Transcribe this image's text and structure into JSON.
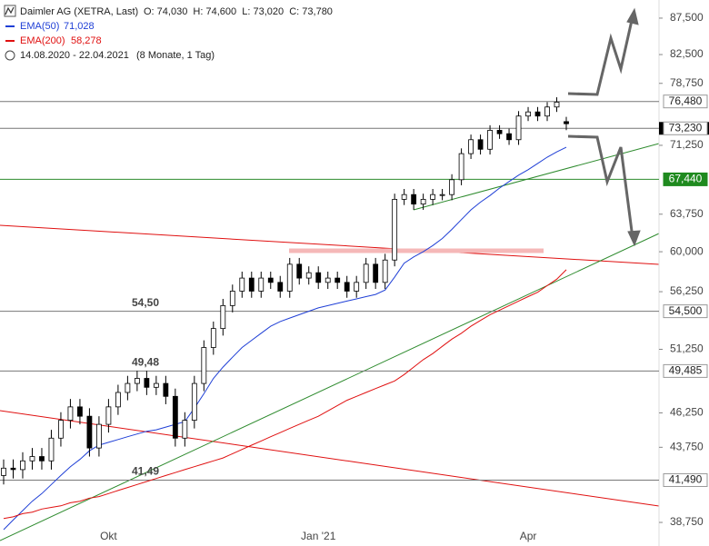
{
  "chart_data": {
    "type": "candlestick",
    "title": "Daimler AG (XETRA, Last)",
    "ohlc_label": "O: 74,030  H: 74,600  L: 73,020  C: 73,780",
    "period": "14.08.2020 - 22.04.2021",
    "period_note": "(8 Monate, 1 Tag)",
    "log_scale": true,
    "up_color": "#ffffff",
    "down_color": "#000000",
    "ylim": [
      38.3,
      90.1
    ],
    "yticks": [
      {
        "value": 38.75,
        "label": "38,750"
      },
      {
        "value": 43.75,
        "label": "43,750"
      },
      {
        "value": 46.25,
        "label": "46,250"
      },
      {
        "value": 51.25,
        "label": "51,250"
      },
      {
        "value": 56.25,
        "label": "56,250"
      },
      {
        "value": 60,
        "label": "60,000"
      },
      {
        "value": 63.75,
        "label": "63,750"
      },
      {
        "value": 71.25,
        "label": "71,250"
      },
      {
        "value": 78.75,
        "label": "78,750"
      },
      {
        "value": 82.5,
        "label": "82,500"
      },
      {
        "value": 87.5,
        "label": "87,500"
      }
    ],
    "categories": [
      null,
      null,
      null,
      null,
      null,
      null,
      null,
      null,
      null,
      null,
      null,
      "Okt",
      null,
      null,
      null,
      null,
      null,
      null,
      null,
      null,
      null,
      null,
      null,
      null,
      null,
      null,
      null,
      null,
      null,
      null,
      null,
      null,
      null,
      "Jan '21",
      null,
      null,
      null,
      null,
      null,
      null,
      null,
      null,
      null,
      null,
      null,
      null,
      null,
      null,
      null,
      null,
      null,
      null,
      null,
      null,
      null,
      "Apr",
      null,
      null,
      null,
      null
    ],
    "open": [
      41.8,
      42.3,
      42.2,
      42.8,
      43.1,
      42.8,
      44.4,
      45.7,
      46.7,
      46.0,
      43.7,
      45.4,
      46.7,
      47.8,
      48.5,
      48.9,
      48.2,
      48.5,
      47.5,
      44.4,
      45.7,
      48.5,
      51.4,
      53.0,
      55.0,
      56.3,
      57.5,
      56.3,
      57.5,
      57.1,
      56.3,
      58.8,
      57.5,
      58.0,
      57.1,
      57.5,
      57.1,
      56.3,
      57.1,
      58.8,
      57.1,
      59.2,
      65.3,
      65.8,
      64.8,
      65.3,
      65.8,
      65.8,
      67.4,
      70.3,
      71.9,
      70.8,
      73.0,
      72.6,
      71.9,
      74.7,
      75.2,
      74.7,
      75.8,
      74.03
    ],
    "high": [
      42.9,
      42.9,
      43.4,
      43.7,
      43.7,
      45.0,
      46.3,
      47.3,
      47.3,
      46.6,
      46.0,
      47.3,
      48.4,
      49.1,
      49.5,
      49.5,
      49.1,
      49.1,
      48.1,
      46.3,
      49.1,
      52.0,
      53.6,
      55.6,
      56.9,
      58.1,
      58.1,
      58.1,
      58.1,
      57.7,
      59.4,
      59.4,
      58.6,
      58.6,
      58.1,
      58.1,
      57.7,
      57.7,
      59.4,
      59.4,
      59.8,
      65.9,
      66.4,
      66.4,
      65.9,
      66.4,
      66.4,
      68.0,
      70.9,
      72.5,
      72.5,
      73.6,
      73.6,
      73.2,
      75.3,
      75.8,
      75.8,
      76.4,
      77.0,
      74.6
    ],
    "low": [
      41.2,
      41.6,
      41.6,
      42.2,
      42.2,
      42.2,
      43.8,
      45.1,
      45.4,
      43.1,
      43.1,
      44.8,
      46.1,
      47.2,
      47.9,
      47.6,
      47.6,
      46.9,
      43.8,
      43.8,
      45.1,
      47.9,
      50.8,
      52.4,
      54.4,
      55.7,
      55.7,
      55.7,
      56.5,
      55.7,
      55.7,
      56.9,
      56.9,
      56.5,
      56.5,
      56.5,
      55.7,
      55.7,
      56.5,
      56.5,
      56.5,
      58.6,
      64.7,
      64.2,
      64.2,
      64.7,
      65.2,
      65.2,
      66.8,
      69.7,
      70.2,
      70.2,
      72.0,
      71.3,
      71.3,
      74.1,
      74.1,
      74.1,
      75.2,
      73.02
    ],
    "close": [
      42.3,
      42.2,
      42.8,
      43.1,
      42.8,
      44.4,
      45.7,
      46.7,
      46.0,
      43.7,
      45.4,
      46.7,
      47.8,
      48.5,
      48.9,
      48.2,
      48.5,
      47.5,
      44.4,
      45.7,
      48.5,
      51.4,
      53.0,
      55.0,
      56.3,
      57.5,
      56.3,
      57.5,
      57.1,
      56.3,
      58.8,
      57.5,
      58.0,
      57.1,
      57.5,
      57.1,
      56.3,
      57.1,
      58.8,
      57.1,
      59.2,
      65.3,
      65.8,
      64.8,
      65.3,
      65.8,
      65.8,
      67.4,
      70.3,
      71.9,
      70.8,
      73.0,
      72.6,
      71.9,
      74.7,
      75.2,
      74.7,
      75.8,
      76.4,
      73.78
    ],
    "series": [
      {
        "name": "EMA(50)",
        "color": "#1f3fd6",
        "last_label": "71,028",
        "values": [
          38.3,
          38.9,
          39.5,
          40.1,
          40.6,
          41.2,
          41.8,
          42.4,
          42.9,
          43.5,
          43.9,
          44.1,
          44.3,
          44.5,
          44.7,
          44.9,
          45.0,
          45.2,
          45.4,
          45.6,
          46.6,
          47.7,
          48.9,
          49.8,
          50.6,
          51.4,
          52.0,
          52.6,
          53.2,
          53.6,
          53.9,
          54.2,
          54.5,
          54.8,
          55.0,
          55.2,
          55.4,
          55.6,
          55.8,
          56.0,
          56.4,
          57.6,
          58.9,
          59.5,
          60.0,
          60.6,
          61.3,
          62.2,
          63.2,
          64.2,
          65.0,
          65.7,
          66.5,
          67.2,
          67.9,
          68.5,
          69.2,
          69.9,
          70.5,
          71.028
        ]
      },
      {
        "name": "EMA(200)",
        "color": "#e01010",
        "last_label": "58,278",
        "values": [
          39.0,
          39.1,
          39.3,
          39.4,
          39.6,
          39.7,
          39.8,
          40.0,
          40.1,
          40.3,
          40.4,
          40.6,
          40.8,
          41.0,
          41.2,
          41.4,
          41.6,
          41.8,
          42.0,
          42.2,
          42.4,
          42.6,
          42.8,
          43.0,
          43.3,
          43.6,
          43.9,
          44.2,
          44.5,
          44.8,
          45.1,
          45.4,
          45.7,
          46.0,
          46.4,
          46.8,
          47.2,
          47.5,
          47.8,
          48.1,
          48.4,
          48.7,
          49.2,
          49.8,
          50.4,
          50.9,
          51.5,
          52.1,
          52.6,
          53.2,
          53.7,
          54.2,
          54.6,
          55.0,
          55.4,
          55.8,
          56.2,
          56.8,
          57.4,
          58.278
        ]
      }
    ],
    "levels": [
      {
        "value": 76.48,
        "label": "76,480",
        "color": "#777777",
        "label_bg": "#ffffff",
        "label_color": "#222222"
      },
      {
        "value": 73.23,
        "label": "73,230",
        "color": "#777777",
        "label_bg": "#ffffff",
        "label_color": "#222222"
      },
      {
        "value": 67.44,
        "label": "67,440",
        "color": "#2e8b2e",
        "label_bg": "#1f8a1f",
        "label_color": "#ffffff"
      },
      {
        "value": 54.5,
        "label": "54,500",
        "note": "54,50",
        "color": "#777777",
        "label_bg": "#ffffff",
        "label_color": "#222222"
      },
      {
        "value": 49.485,
        "label": "49,485",
        "note": "49,48",
        "color": "#777777",
        "label_bg": "#ffffff",
        "label_color": "#222222"
      },
      {
        "value": 41.49,
        "label": "41,490",
        "note": "41,49",
        "color": "#777777",
        "label_bg": "#ffffff",
        "label_color": "#222222"
      }
    ]
  }
}
